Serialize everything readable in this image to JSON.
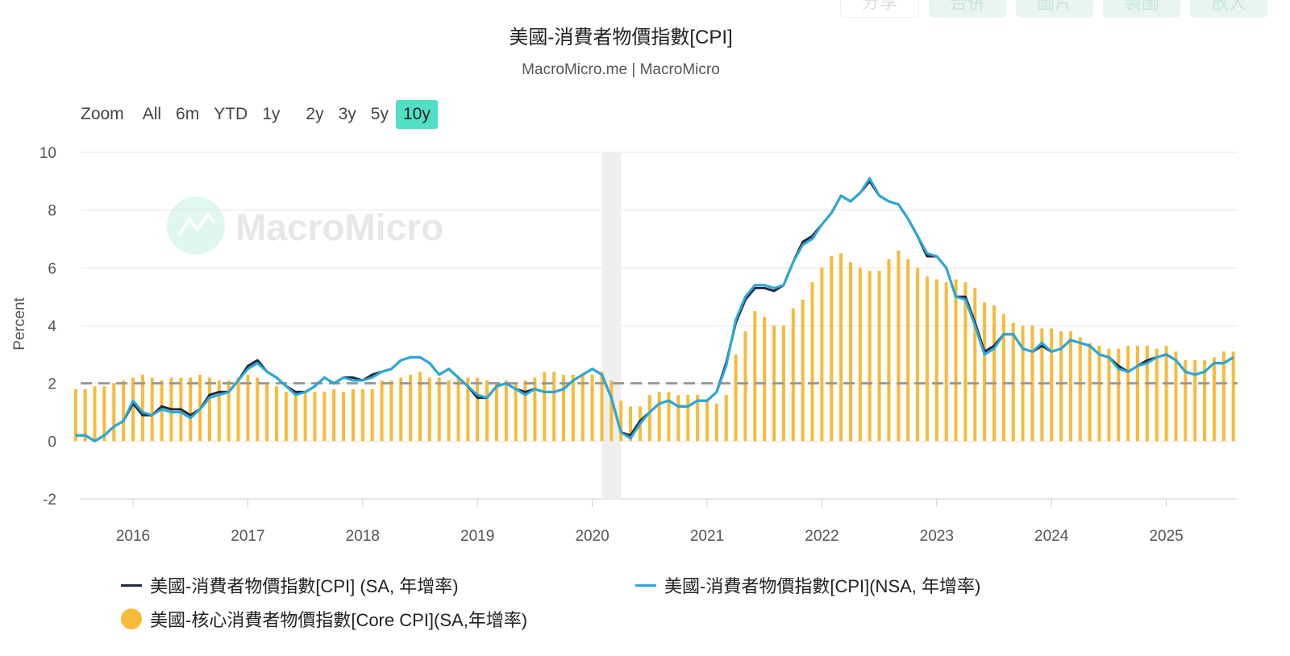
{
  "toolbar": {
    "buttons": [
      "分享",
      "合併",
      "圖片",
      "製圖",
      "放大"
    ]
  },
  "header": {
    "title": "美國-消費者物價指數[CPI]",
    "subtitle": "MacroMicro.me | MacroMicro"
  },
  "zoom": {
    "label": "Zoom",
    "options": [
      "All",
      "6m",
      "YTD",
      "1y",
      "2y",
      "3y",
      "5y",
      "10y"
    ],
    "active": "10y"
  },
  "watermark": "MacroMicro",
  "colors": {
    "sa": "#1f2a44",
    "nsa": "#2aa9d8",
    "core": "#f7bb3a",
    "accent": "#52e0c4",
    "recession": "#efefef",
    "reference": "#999999"
  },
  "chart_data": {
    "type": "line+bar",
    "title": "美國-消費者物價指數[CPI]",
    "ylabel": "Percent",
    "ylim": [
      -2,
      10
    ],
    "yticks": [
      "-2",
      "0",
      "2",
      "4",
      "6",
      "8",
      "10"
    ],
    "xticks": [
      "2016",
      "2017",
      "2018",
      "2019",
      "2020",
      "2021",
      "2022",
      "2023",
      "2024",
      "2025"
    ],
    "start": "2015-07",
    "end": "2025-08",
    "frequency": "monthly",
    "reference_line": 2,
    "recession": [
      "2020-02",
      "2020-04"
    ],
    "grid": true,
    "legend_position": "bottom",
    "series": [
      {
        "name": "美國-消費者物價指數[CPI] (SA, 年增率)",
        "type": "line",
        "values": [
          0.2,
          0.2,
          0.0,
          0.2,
          0.5,
          0.7,
          1.3,
          0.9,
          0.9,
          1.2,
          1.1,
          1.1,
          0.9,
          1.1,
          1.6,
          1.7,
          1.7,
          2.1,
          2.6,
          2.8,
          2.4,
          2.2,
          1.9,
          1.7,
          1.7,
          1.9,
          2.2,
          2.0,
          2.2,
          2.2,
          2.1,
          2.3,
          2.4,
          2.5,
          2.8,
          2.9,
          2.9,
          2.7,
          2.3,
          2.5,
          2.2,
          1.9,
          1.5,
          1.5,
          1.9,
          2.0,
          1.8,
          1.7,
          1.8,
          1.7,
          1.7,
          1.8,
          2.1,
          2.3,
          2.5,
          2.3,
          1.5,
          0.3,
          0.2,
          0.7,
          1.0,
          1.3,
          1.4,
          1.2,
          1.2,
          1.4,
          1.4,
          1.7,
          2.7,
          4.1,
          4.9,
          5.3,
          5.3,
          5.2,
          5.4,
          6.2,
          6.9,
          7.1,
          7.5,
          7.9,
          8.5,
          8.3,
          8.6,
          9.0,
          8.5,
          8.3,
          8.2,
          7.7,
          7.1,
          6.4,
          6.4,
          6.0,
          5.0,
          5.0,
          4.1,
          3.1,
          3.3,
          3.7,
          3.7,
          3.2,
          3.1,
          3.3,
          3.1,
          3.2,
          3.5,
          3.4,
          3.3,
          3.0,
          2.9,
          2.6,
          2.4,
          2.6,
          2.8,
          2.9,
          3.0,
          2.8,
          2.4,
          2.3,
          2.4,
          2.7,
          2.7,
          2.9
        ]
      },
      {
        "name": "美國-消費者物價指數[CPI](NSA, 年增率)",
        "type": "line",
        "values": [
          0.2,
          0.2,
          0.0,
          0.2,
          0.5,
          0.7,
          1.4,
          1.0,
          0.9,
          1.1,
          1.0,
          1.0,
          0.8,
          1.1,
          1.5,
          1.6,
          1.7,
          2.1,
          2.5,
          2.7,
          2.4,
          2.2,
          1.9,
          1.6,
          1.7,
          1.9,
          2.2,
          2.0,
          2.2,
          2.1,
          2.1,
          2.2,
          2.4,
          2.5,
          2.8,
          2.9,
          2.9,
          2.7,
          2.3,
          2.5,
          2.2,
          1.9,
          1.6,
          1.5,
          1.9,
          2.0,
          1.8,
          1.6,
          1.8,
          1.7,
          1.7,
          1.8,
          2.1,
          2.3,
          2.5,
          2.3,
          1.5,
          0.3,
          0.1,
          0.6,
          1.0,
          1.3,
          1.4,
          1.2,
          1.2,
          1.4,
          1.4,
          1.7,
          2.6,
          4.2,
          5.0,
          5.4,
          5.4,
          5.3,
          5.4,
          6.2,
          6.8,
          7.0,
          7.5,
          7.9,
          8.5,
          8.3,
          8.6,
          9.1,
          8.5,
          8.3,
          8.2,
          7.7,
          7.1,
          6.5,
          6.4,
          6.0,
          5.0,
          4.9,
          4.0,
          3.0,
          3.2,
          3.7,
          3.7,
          3.2,
          3.1,
          3.4,
          3.1,
          3.2,
          3.5,
          3.4,
          3.3,
          3.0,
          2.9,
          2.5,
          2.4,
          2.6,
          2.7,
          2.9,
          3.0,
          2.8,
          2.4,
          2.3,
          2.4,
          2.7,
          2.7,
          2.9
        ]
      },
      {
        "name": "美國-核心消費者物價指數[Core CPI](SA,年增率)",
        "type": "bar",
        "values": [
          1.8,
          1.8,
          1.9,
          1.9,
          2.0,
          2.1,
          2.2,
          2.3,
          2.2,
          2.1,
          2.2,
          2.2,
          2.2,
          2.3,
          2.2,
          2.1,
          2.1,
          2.2,
          2.3,
          2.2,
          2.0,
          1.9,
          1.7,
          1.7,
          1.7,
          1.7,
          1.7,
          1.8,
          1.7,
          1.8,
          1.8,
          1.8,
          2.1,
          2.1,
          2.2,
          2.3,
          2.4,
          2.2,
          2.2,
          2.1,
          2.2,
          2.2,
          2.2,
          2.1,
          2.0,
          2.1,
          2.0,
          2.1,
          2.2,
          2.4,
          2.4,
          2.3,
          2.3,
          2.3,
          2.3,
          2.4,
          2.1,
          1.4,
          1.2,
          1.2,
          1.6,
          1.7,
          1.7,
          1.6,
          1.6,
          1.6,
          1.4,
          1.3,
          1.6,
          3.0,
          3.8,
          4.5,
          4.3,
          4.0,
          4.0,
          4.6,
          4.9,
          5.5,
          6.0,
          6.4,
          6.5,
          6.2,
          6.0,
          5.9,
          5.9,
          6.3,
          6.6,
          6.3,
          6.0,
          5.7,
          5.6,
          5.5,
          5.6,
          5.5,
          5.3,
          4.8,
          4.7,
          4.4,
          4.1,
          4.0,
          4.0,
          3.9,
          3.9,
          3.8,
          3.8,
          3.6,
          3.4,
          3.3,
          3.2,
          3.2,
          3.3,
          3.3,
          3.3,
          3.2,
          3.3,
          3.1,
          2.8,
          2.8,
          2.8,
          2.9,
          3.1,
          3.1
        ]
      }
    ]
  }
}
